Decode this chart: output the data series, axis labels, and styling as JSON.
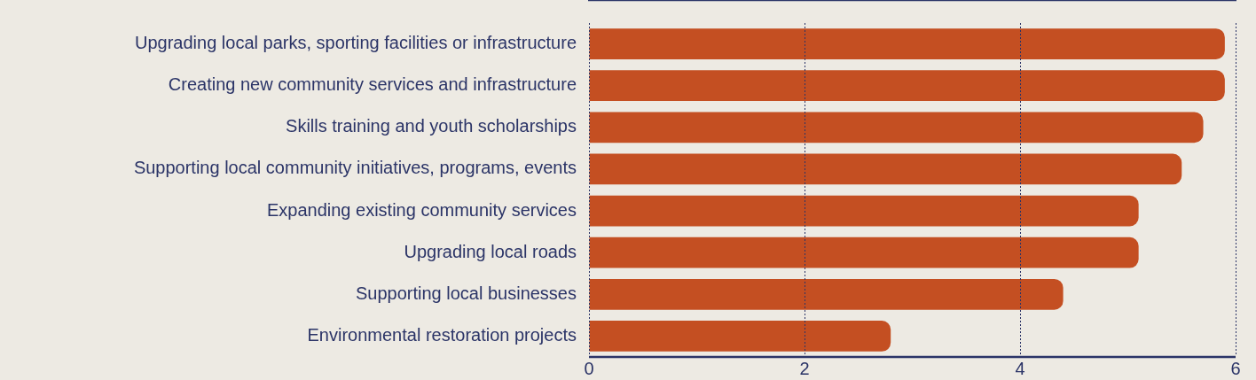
{
  "chart_data": {
    "type": "bar",
    "orientation": "horizontal",
    "categories": [
      "Upgrading local parks, sporting facilities or infrastructure",
      "Creating new community services and infrastructure",
      "Skills training and youth scholarships",
      "Supporting local community initiatives, programs, events",
      "Expanding existing community services",
      "Upgrading local roads",
      "Supporting local businesses",
      "Environmental restoration projects"
    ],
    "values": [
      5.9,
      5.9,
      5.7,
      5.5,
      5.1,
      5.1,
      4.4,
      2.8
    ],
    "color": "#c44f22",
    "xlim": [
      0,
      6
    ],
    "xticks": [
      0,
      2,
      4,
      6
    ],
    "grid": "x",
    "legend": false
  }
}
